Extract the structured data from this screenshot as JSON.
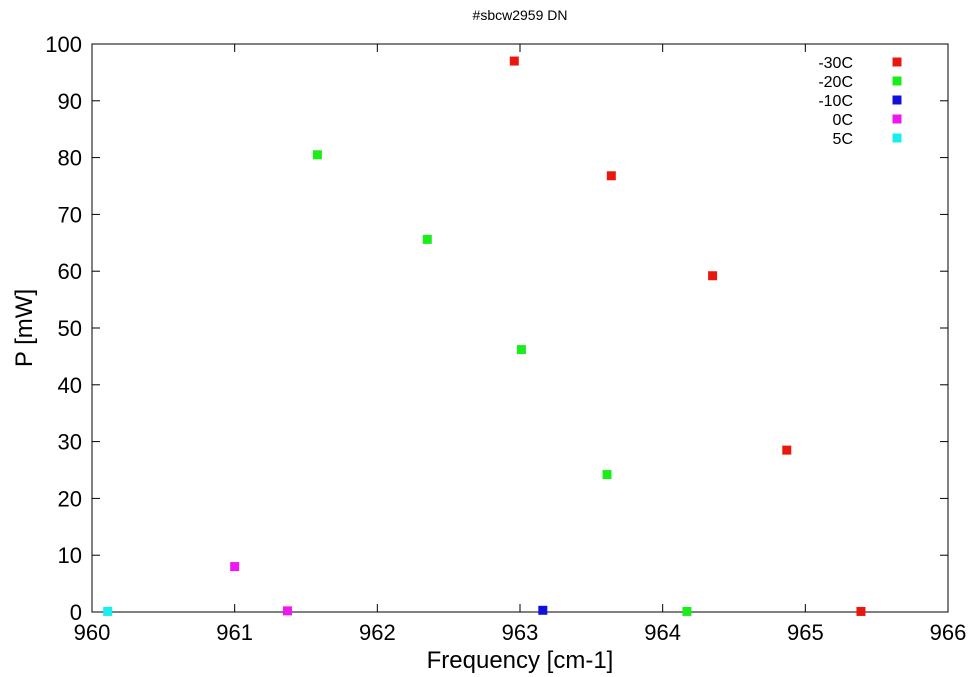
{
  "chart_data": {
    "type": "scatter",
    "title": "#sbcw2959 DN",
    "xlabel": "Frequency [cm-1]",
    "ylabel": "P [mW]",
    "xlim": [
      960,
      966
    ],
    "ylim": [
      0,
      100
    ],
    "xticks": [
      960,
      961,
      962,
      963,
      964,
      965,
      966
    ],
    "yticks": [
      0,
      10,
      20,
      30,
      40,
      50,
      60,
      70,
      80,
      90,
      100
    ],
    "grid": false,
    "legend_position": "top-right",
    "series": [
      {
        "name": "-30C",
        "color": "#e8180f",
        "points": [
          {
            "x": 962.96,
            "y": 97.0
          },
          {
            "x": 963.64,
            "y": 76.8
          },
          {
            "x": 964.35,
            "y": 59.2
          },
          {
            "x": 964.87,
            "y": 28.5
          },
          {
            "x": 965.39,
            "y": 0.1
          }
        ]
      },
      {
        "name": "-20C",
        "color": "#19ee19",
        "points": [
          {
            "x": 961.58,
            "y": 80.5
          },
          {
            "x": 962.35,
            "y": 65.6
          },
          {
            "x": 963.01,
            "y": 46.2
          },
          {
            "x": 963.61,
            "y": 24.2
          },
          {
            "x": 964.17,
            "y": 0.1
          }
        ]
      },
      {
        "name": "-10C",
        "color": "#1010dd",
        "points": [
          {
            "x": 963.16,
            "y": 0.3
          }
        ]
      },
      {
        "name": "0C",
        "color": "#ee17ee",
        "points": [
          {
            "x": 961.0,
            "y": 8.0
          },
          {
            "x": 961.37,
            "y": 0.2
          }
        ]
      },
      {
        "name": "5C",
        "color": "#19eeee",
        "points": [
          {
            "x": 960.11,
            "y": 0.1
          }
        ]
      }
    ]
  }
}
